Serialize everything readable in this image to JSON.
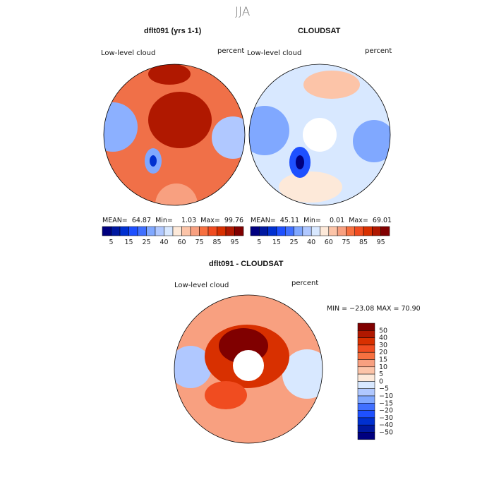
{
  "title": "JJA",
  "panels": [
    {
      "title": "dflt091 (yrs 1-1)",
      "variable": "Low-level cloud",
      "units": "percent",
      "stats": {
        "mean_label": "MEAN=",
        "mean": "64.87",
        "min_label": "Min=",
        "min": "1.03",
        "max_label": "Max=",
        "max": "99.76"
      }
    },
    {
      "title": "CLOUDSAT",
      "variable": "Low-level cloud",
      "units": "percent",
      "stats": {
        "mean_label": "MEAN=",
        "mean": "45.11",
        "min_label": "Min=",
        "min": "0.01",
        "max_label": "Max=",
        "max": "69.01"
      }
    },
    {
      "title": "dflt091 - CLOUDSAT",
      "variable": "Low-level cloud",
      "units": "percent",
      "stats": {
        "text": "MIN = −23.08 MAX =  70.90"
      }
    }
  ],
  "colorbar_top": {
    "labels": [
      "5",
      "15",
      "25",
      "40",
      "60",
      "75",
      "85",
      "95"
    ],
    "colors": [
      "#00007f",
      "#0018a0",
      "#0030d0",
      "#1e50ff",
      "#4070ff",
      "#80a8ff",
      "#b0c8ff",
      "#d8e8ff",
      "#fde9d9",
      "#fcc4a8",
      "#f8a080",
      "#f77040",
      "#f04c20",
      "#d83000",
      "#b01800",
      "#800000"
    ]
  },
  "colorbar_diff": {
    "labels": [
      "50",
      "40",
      "30",
      "20",
      "15",
      "10",
      "5",
      "0",
      "−5",
      "−10",
      "−15",
      "−20",
      "−30",
      "−40",
      "−50"
    ],
    "colors": [
      "#800000",
      "#b01800",
      "#d83000",
      "#f04c20",
      "#f77040",
      "#f8a080",
      "#fcc4a8",
      "#fde9d9",
      "#d8e8ff",
      "#b0c8ff",
      "#80a8ff",
      "#4070ff",
      "#1e50ff",
      "#0030d0",
      "#0018a0",
      "#00007f"
    ]
  }
}
